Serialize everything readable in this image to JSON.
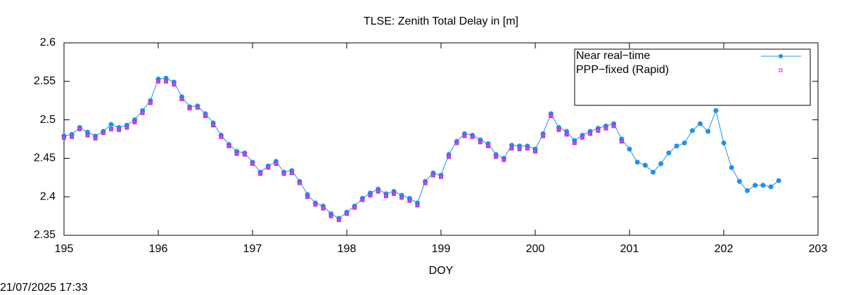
{
  "chart_data": {
    "type": "scatter_line",
    "title": "TLSE: Zenith Total Delay in [m]",
    "x_label": "DOY",
    "timestamp": "21/07/2025 17:33",
    "xlim": [
      195,
      203
    ],
    "xticks": [
      195,
      196,
      197,
      198,
      199,
      200,
      201,
      202,
      203
    ],
    "ylim": [
      2.35,
      2.6
    ],
    "yticks": [
      2.35,
      2.4,
      2.45,
      2.5,
      2.55,
      2.6
    ],
    "legend": "top-right",
    "series": [
      {
        "name": "Near real−time",
        "color": "#1e90f0",
        "line": true,
        "marker": "circle",
        "x": [
          195,
          195.083,
          195.167,
          195.25,
          195.333,
          195.417,
          195.5,
          195.583,
          195.667,
          195.75,
          195.833,
          195.917,
          196,
          196.083,
          196.167,
          196.25,
          196.333,
          196.417,
          196.5,
          196.583,
          196.667,
          196.75,
          196.833,
          196.917,
          197,
          197.083,
          197.167,
          197.25,
          197.333,
          197.417,
          197.5,
          197.583,
          197.667,
          197.75,
          197.833,
          197.917,
          198,
          198.083,
          198.167,
          198.25,
          198.333,
          198.417,
          198.5,
          198.583,
          198.667,
          198.75,
          198.833,
          198.917,
          199,
          199.083,
          199.167,
          199.25,
          199.333,
          199.417,
          199.5,
          199.583,
          199.667,
          199.75,
          199.833,
          199.917,
          200,
          200.083,
          200.167,
          200.25,
          200.333,
          200.417,
          200.5,
          200.583,
          200.667,
          200.75,
          200.833,
          200.917,
          201,
          201.083,
          201.167,
          201.25,
          201.333,
          201.417,
          201.5,
          201.583,
          201.667,
          201.75,
          201.833,
          201.917,
          202,
          202.083,
          202.167,
          202.25,
          202.333,
          202.417,
          202.5,
          202.583
        ],
        "values": [
          2.479,
          2.481,
          2.49,
          2.484,
          2.479,
          2.485,
          2.494,
          2.49,
          2.493,
          2.5,
          2.512,
          2.525,
          2.553,
          2.554,
          2.549,
          2.53,
          2.517,
          2.518,
          2.508,
          2.496,
          2.48,
          2.468,
          2.459,
          2.457,
          2.445,
          2.432,
          2.44,
          2.446,
          2.432,
          2.434,
          2.42,
          2.403,
          2.392,
          2.388,
          2.378,
          2.372,
          2.38,
          2.388,
          2.398,
          2.405,
          2.41,
          2.404,
          2.407,
          2.402,
          2.398,
          2.392,
          2.42,
          2.431,
          2.428,
          2.455,
          2.472,
          2.482,
          2.48,
          2.474,
          2.469,
          2.455,
          2.45,
          2.467,
          2.466,
          2.466,
          2.462,
          2.482,
          2.508,
          2.49,
          2.485,
          2.473,
          2.48,
          2.485,
          2.489,
          2.492,
          2.495,
          2.475,
          2.462,
          2.445,
          2.441,
          2.432,
          2.443,
          2.457,
          2.466,
          2.47,
          2.486,
          2.495,
          2.485,
          2.512,
          2.47,
          2.438,
          2.42,
          2.408,
          2.415,
          2.415,
          2.413,
          2.421
        ]
      },
      {
        "name": "PPP−fixed (Rapid)",
        "color": "#d020d0",
        "line": false,
        "marker": "square",
        "x": [
          195,
          195.083,
          195.167,
          195.25,
          195.333,
          195.417,
          195.5,
          195.583,
          195.667,
          195.75,
          195.833,
          195.917,
          196,
          196.083,
          196.167,
          196.25,
          196.333,
          196.417,
          196.5,
          196.583,
          196.667,
          196.75,
          196.833,
          196.917,
          197,
          197.083,
          197.167,
          197.25,
          197.333,
          197.417,
          197.5,
          197.583,
          197.667,
          197.75,
          197.833,
          197.917,
          198,
          198.083,
          198.167,
          198.25,
          198.333,
          198.417,
          198.5,
          198.583,
          198.667,
          198.75,
          198.833,
          198.917,
          199,
          199.083,
          199.167,
          199.25,
          199.333,
          199.417,
          199.5,
          199.583,
          199.667,
          199.75,
          199.833,
          199.917,
          200,
          200.083,
          200.167,
          200.25,
          200.333,
          200.417,
          200.5,
          200.583,
          200.667,
          200.75,
          200.833,
          200.917
        ],
        "values": [
          2.477,
          2.478,
          2.488,
          2.48,
          2.476,
          2.483,
          2.488,
          2.487,
          2.49,
          2.497,
          2.509,
          2.522,
          2.55,
          2.55,
          2.546,
          2.527,
          2.515,
          2.516,
          2.505,
          2.493,
          2.478,
          2.466,
          2.456,
          2.455,
          2.443,
          2.43,
          2.438,
          2.443,
          2.43,
          2.431,
          2.418,
          2.4,
          2.39,
          2.385,
          2.375,
          2.37,
          2.378,
          2.386,
          2.396,
          2.402,
          2.407,
          2.401,
          2.404,
          2.399,
          2.395,
          2.389,
          2.418,
          2.428,
          2.426,
          2.452,
          2.47,
          2.479,
          2.478,
          2.471,
          2.466,
          2.452,
          2.448,
          2.463,
          2.462,
          2.463,
          2.459,
          2.479,
          2.505,
          2.487,
          2.481,
          2.47,
          2.477,
          2.482,
          2.486,
          2.489,
          2.492,
          2.472
        ]
      }
    ]
  }
}
